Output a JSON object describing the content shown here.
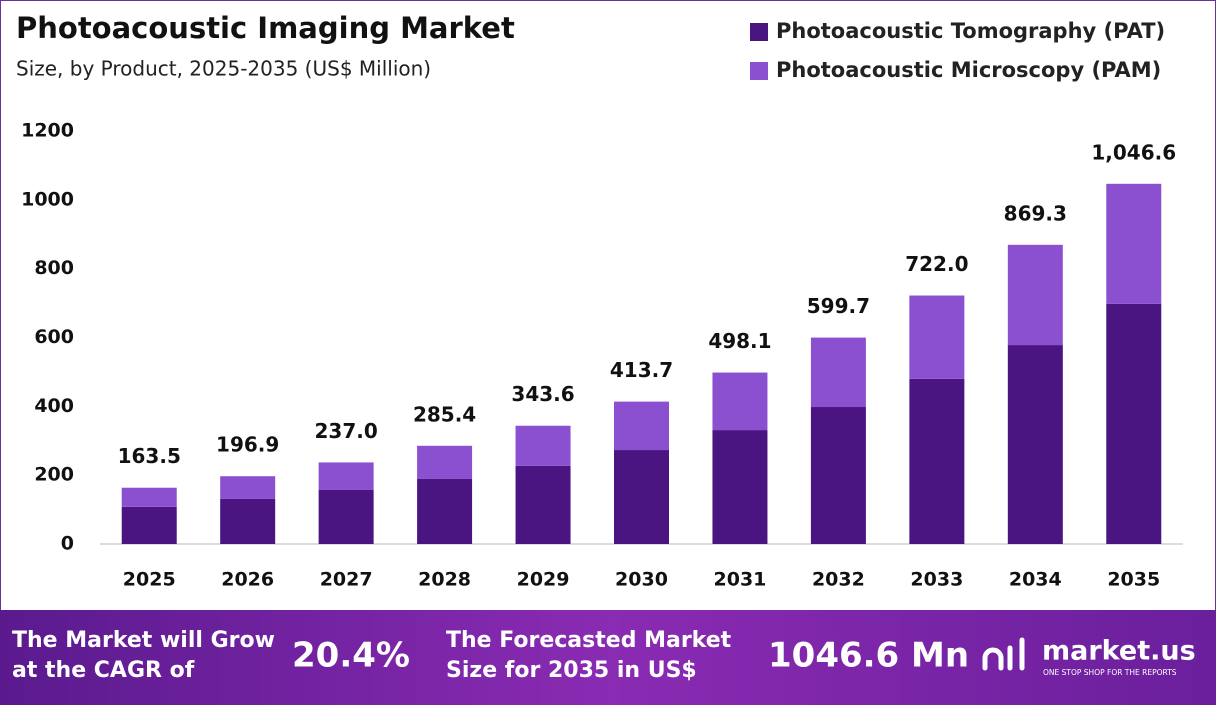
{
  "chart_data": {
    "type": "stacked_bar",
    "title": "Photoacoustic Imaging Market",
    "subtitle": "Size, by Product, 2025-2035 (US$ Million)",
    "categories": [
      "2025",
      "2026",
      "2027",
      "2028",
      "2029",
      "2030",
      "2031",
      "2032",
      "2033",
      "2034",
      "2035"
    ],
    "series": [
      {
        "name": "Photoacoustic Tomography (PAT)",
        "color": "#4a1580",
        "values": [
          108,
          131,
          157,
          189,
          227,
          273,
          331,
          398,
          480,
          578,
          698
        ]
      },
      {
        "name": "Photoacoustic Microscopy (PAM)",
        "color": "#8b50d0",
        "values": [
          55.5,
          65.9,
          80,
          96.4,
          116.6,
          140.7,
          167.1,
          201.7,
          242,
          291.3,
          348.6
        ]
      }
    ],
    "totals": [
      163.5,
      196.9,
      237,
      285.4,
      343.6,
      413.7,
      498.1,
      599.7,
      722,
      869.3,
      1046.6
    ],
    "total_labels": [
      "163.5",
      "196.9",
      "237.0",
      "285.4",
      "343.6",
      "413.7",
      "498.1",
      "599.7",
      "722.0",
      "869.3",
      "1,046.6"
    ],
    "ylim": [
      0,
      1200
    ],
    "yticks": [
      0,
      200,
      400,
      600,
      800,
      1000,
      1200
    ],
    "grid": false,
    "legend": "top-right"
  },
  "footer": {
    "cagr_text": [
      "The Market will Grow",
      "at the CAGR of"
    ],
    "cagr_value": "20.4%",
    "forecast_text": [
      "The Forecasted Market",
      "Size for 2035 in US$"
    ],
    "forecast_value": "1046.6 Mn",
    "brand": "market.us",
    "tagline": "ONE STOP SHOP FOR THE REPORTS"
  }
}
